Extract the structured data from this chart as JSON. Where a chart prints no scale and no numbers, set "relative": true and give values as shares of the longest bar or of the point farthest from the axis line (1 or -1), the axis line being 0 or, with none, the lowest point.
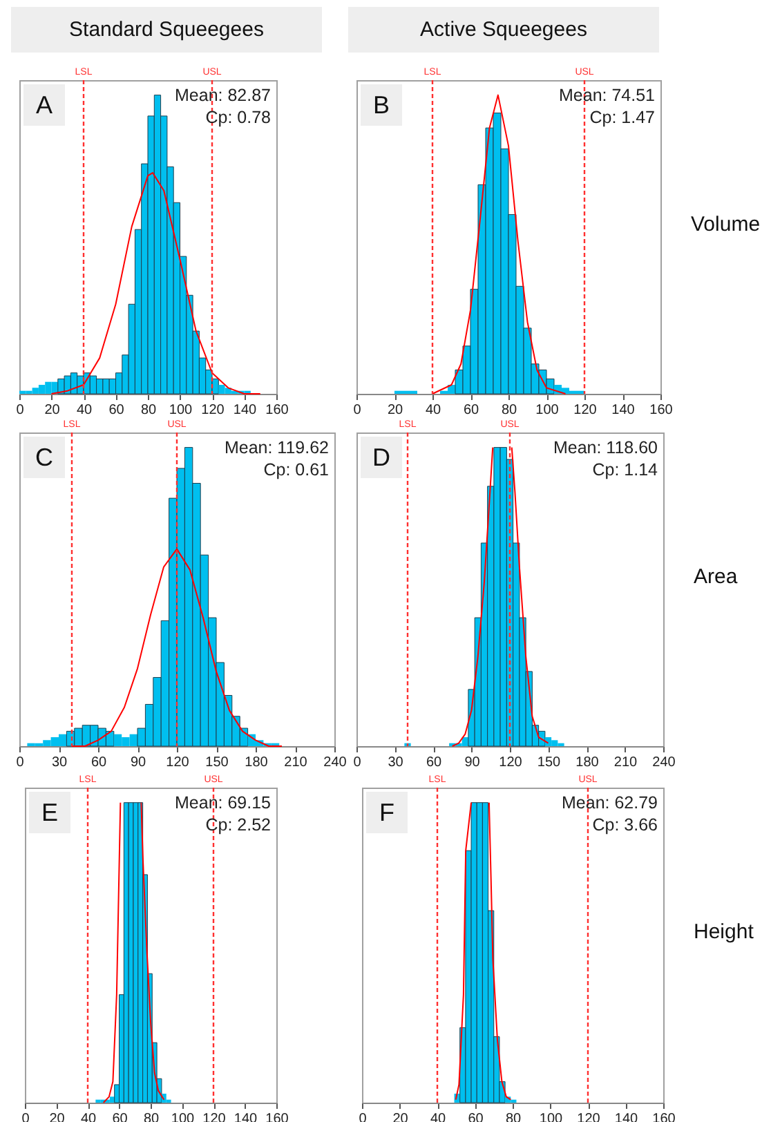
{
  "chart_data": [
    {
      "type": "histogram",
      "title": "Standard Squeegees",
      "relative": true,
      "xlim": [
        0,
        160
      ],
      "xticks": [
        0,
        20,
        40,
        60,
        80,
        100,
        120,
        140,
        160
      ],
      "annotations": [
        "A",
        "Mean: 82.87",
        "Cp: 0.78"
      ],
      "ref_lines": [
        {
          "axis": "x",
          "value": 40,
          "label": "LSL",
          "color": "#ff3030",
          "line_style": "dashed"
        },
        {
          "axis": "x",
          "value": 120,
          "label": "USL",
          "color": "#ff3030",
          "line_style": "dashed"
        }
      ],
      "series": [
        {
          "type": "histogram",
          "color": "#00bfef",
          "bins": [
            0,
            4,
            8,
            12,
            16,
            20,
            24,
            28,
            32,
            36,
            40,
            44,
            48,
            52,
            56,
            60,
            64,
            68,
            72,
            76,
            80,
            84,
            88,
            92,
            96,
            100,
            104,
            108,
            112,
            116,
            120,
            124,
            128,
            132,
            136,
            140,
            144
          ],
          "values": [
            0.01,
            0.01,
            0.02,
            0.03,
            0.04,
            0.04,
            0.05,
            0.06,
            0.07,
            0.06,
            0.07,
            0.06,
            0.05,
            0.05,
            0.05,
            0.07,
            0.13,
            0.3,
            0.55,
            0.77,
            0.93,
            1.0,
            0.93,
            0.76,
            0.64,
            0.46,
            0.33,
            0.21,
            0.12,
            0.08,
            0.05,
            0.03,
            0.02,
            0.01,
            0.01,
            0.01
          ]
        },
        {
          "type": "line",
          "color": "#ff0000",
          "x": [
            20,
            30,
            40,
            50,
            60,
            70,
            80,
            83,
            90,
            100,
            110,
            120,
            130,
            140,
            150
          ],
          "values": [
            0,
            0.01,
            0.03,
            0.12,
            0.3,
            0.56,
            0.73,
            0.74,
            0.68,
            0.45,
            0.21,
            0.07,
            0.02,
            0,
            0
          ]
        }
      ]
    },
    {
      "type": "histogram",
      "title": "Active Squeegees",
      "relative": true,
      "xlim": [
        0,
        160
      ],
      "xticks": [
        0,
        20,
        40,
        60,
        80,
        100,
        120,
        140,
        160
      ],
      "annotations": [
        "B",
        "Mean: 74.51",
        "Cp: 1.47",
        "Volume"
      ],
      "ref_lines": [
        {
          "axis": "x",
          "value": 40,
          "label": "LSL",
          "color": "#ff3030",
          "line_style": "dashed"
        },
        {
          "axis": "x",
          "value": 120,
          "label": "USL",
          "color": "#ff3030",
          "line_style": "dashed"
        }
      ],
      "series": [
        {
          "type": "histogram",
          "color": "#00bfef",
          "bins": [
            20,
            24,
            28,
            32,
            36,
            40,
            44,
            48,
            52,
            56,
            60,
            64,
            68,
            72,
            76,
            80,
            84,
            88,
            92,
            96,
            100,
            104,
            108,
            112,
            116,
            120
          ],
          "values": [
            0.01,
            0.01,
            0.01,
            0,
            0,
            0,
            0.01,
            0.03,
            0.08,
            0.16,
            0.35,
            0.7,
            0.89,
            0.94,
            0.82,
            0.6,
            0.36,
            0.22,
            0.1,
            0.08,
            0.05,
            0.03,
            0.02,
            0.01,
            0.01
          ]
        },
        {
          "type": "line",
          "color": "#ff0000",
          "x": [
            40,
            50,
            55,
            60,
            65,
            70,
            74.5,
            80,
            85,
            90,
            95,
            100,
            110
          ],
          "values": [
            0,
            0.03,
            0.1,
            0.28,
            0.58,
            0.89,
            1.0,
            0.83,
            0.51,
            0.24,
            0.08,
            0.02,
            0
          ]
        }
      ]
    },
    {
      "type": "histogram",
      "relative": true,
      "xlim": [
        0,
        240
      ],
      "xticks": [
        0,
        30,
        60,
        90,
        120,
        150,
        180,
        210,
        240
      ],
      "annotations": [
        "C",
        "Mean: 119.62",
        "Cp: 0.61"
      ],
      "ref_lines": [
        {
          "axis": "x",
          "value": 40,
          "label": "LSL",
          "color": "#ff3030",
          "line_style": "dashed"
        },
        {
          "axis": "x",
          "value": 120,
          "label": "USL",
          "color": "#ff3030",
          "line_style": "dashed"
        }
      ],
      "series": [
        {
          "type": "histogram",
          "color": "#00bfef",
          "bins": [
            6,
            12,
            18,
            24,
            30,
            36,
            42,
            48,
            54,
            60,
            66,
            72,
            78,
            84,
            90,
            96,
            102,
            108,
            114,
            120,
            126,
            132,
            138,
            144,
            150,
            156,
            162,
            168,
            174,
            180,
            186,
            192,
            198
          ],
          "values": [
            0.01,
            0.01,
            0.02,
            0.03,
            0.04,
            0.05,
            0.06,
            0.07,
            0.07,
            0.06,
            0.05,
            0.04,
            0.03,
            0.04,
            0.06,
            0.14,
            0.23,
            0.42,
            0.83,
            0.93,
            1.0,
            0.88,
            0.64,
            0.43,
            0.28,
            0.17,
            0.1,
            0.06,
            0.04,
            0.02,
            0.01,
            0.01
          ]
        },
        {
          "type": "line",
          "color": "#ff0000",
          "x": [
            40,
            50,
            60,
            70,
            80,
            90,
            100,
            110,
            120,
            130,
            140,
            150,
            160,
            170,
            180,
            190,
            200
          ],
          "values": [
            0,
            0,
            0.02,
            0.05,
            0.13,
            0.26,
            0.44,
            0.6,
            0.66,
            0.59,
            0.43,
            0.25,
            0.12,
            0.05,
            0.02,
            0,
            0
          ]
        }
      ]
    },
    {
      "type": "histogram",
      "relative": true,
      "xlim": [
        0,
        240
      ],
      "xticks": [
        0,
        30,
        60,
        90,
        120,
        150,
        180,
        210,
        240
      ],
      "annotations": [
        "D",
        "Mean: 118.60",
        "Cp: 1.14",
        "Area"
      ],
      "ref_lines": [
        {
          "axis": "x",
          "value": 40,
          "label": "LSL",
          "color": "#ff3030",
          "line_style": "dashed"
        },
        {
          "axis": "x",
          "value": 120,
          "label": "USL",
          "color": "#ff3030",
          "line_style": "dashed"
        }
      ],
      "series": [
        {
          "type": "histogram",
          "color": "#00bfef",
          "bins": [
            37.5,
            42.5,
            47.5,
            52.5,
            57.5,
            62.5,
            67.5,
            72.5,
            77.5,
            82.5,
            87.5,
            92.5,
            97.5,
            102.5,
            107.5,
            112.5,
            117.5,
            122.5,
            127.5,
            132.5,
            137.5,
            142.5,
            147.5,
            152.5,
            157.5,
            162.5
          ],
          "values": [
            0.01,
            0,
            0,
            0,
            0,
            0,
            0,
            0.01,
            0.01,
            0.03,
            0.19,
            0.43,
            0.68,
            0.87,
            1,
            1,
            0.96,
            0.68,
            0.43,
            0.25,
            0.07,
            0.05,
            0.03,
            0.02,
            0.01
          ]
        },
        {
          "type": "line",
          "color": "#ff0000",
          "x": [
            75,
            80,
            85,
            90,
            95,
            100,
            104,
            106.6,
            114,
            121.5,
            124,
            127.5,
            132.5,
            137.5,
            142.5,
            150
          ],
          "values": [
            0,
            0.01,
            0.04,
            0.12,
            0.3,
            0.55,
            0.82,
            1.0,
            null,
            1.0,
            0.85,
            0.6,
            0.3,
            0.1,
            0.03,
            0.01
          ]
        }
      ]
    },
    {
      "type": "histogram",
      "relative": true,
      "xlim": [
        0,
        160
      ],
      "xticks": [
        0,
        20,
        40,
        60,
        80,
        100,
        120,
        140,
        160
      ],
      "annotations": [
        "E",
        "Mean: 69.15",
        "Cp: 2.52"
      ],
      "ref_lines": [
        {
          "axis": "x",
          "value": 40,
          "label": "LSL",
          "color": "#ff3030",
          "line_style": "dashed"
        },
        {
          "axis": "x",
          "value": 120,
          "label": "USL",
          "color": "#ff3030",
          "line_style": "dashed"
        }
      ],
      "series": [
        {
          "type": "histogram",
          "color": "#00bfef",
          "bins": [
            45,
            48,
            51,
            54,
            57,
            60,
            63,
            66,
            69,
            72,
            75,
            78,
            81,
            84,
            87,
            90,
            93
          ],
          "values": [
            0.01,
            0.01,
            0.01,
            0.02,
            0.06,
            0.36,
            1,
            1,
            1,
            1,
            0.76,
            0.43,
            0.2,
            0.08,
            0.03,
            0.01
          ]
        },
        {
          "type": "line",
          "color": "#ff0000",
          "x": [
            50,
            53.6,
            56,
            58.4,
            60.8,
            67,
            74,
            75.2,
            77.6,
            80,
            82.5,
            84.9,
            88.5
          ],
          "values": [
            0,
            0.02,
            0.07,
            0.36,
            1.0,
            null,
            1.0,
            0.8,
            0.51,
            0.27,
            0.1,
            0.04,
            0.01
          ]
        }
      ]
    },
    {
      "type": "histogram",
      "relative": true,
      "xlim": [
        0,
        160
      ],
      "xticks": [
        0,
        20,
        40,
        60,
        80,
        100,
        120,
        140,
        160
      ],
      "annotations": [
        "F",
        "Mean: 62.79",
        "Cp: 3.66",
        "Height"
      ],
      "ref_lines": [
        {
          "axis": "x",
          "value": 40,
          "label": "LSL",
          "color": "#ff3030",
          "line_style": "dashed"
        },
        {
          "axis": "x",
          "value": 120,
          "label": "USL",
          "color": "#ff3030",
          "line_style": "dashed"
        }
      ],
      "series": [
        {
          "type": "histogram",
          "color": "#00bfef",
          "bins": [
            49,
            52,
            55,
            58,
            61,
            64,
            67,
            70,
            73,
            76,
            79,
            82
          ],
          "values": [
            0.03,
            0.25,
            0.84,
            1,
            1,
            1,
            0.64,
            0.22,
            0.07,
            0.02,
            0.01
          ]
        },
        {
          "type": "line",
          "color": "#ff0000",
          "x": [
            49.8,
            51.5,
            53.9,
            55.1,
            58,
            62.8,
            67.5,
            68.5,
            69.5,
            71.9,
            74.3,
            76.6,
            79
          ],
          "values": [
            0.01,
            0.06,
            0.36,
            0.84,
            1.0,
            null,
            1.0,
            0.75,
            0.48,
            0.21,
            0.07,
            0.02,
            0.01
          ]
        }
      ]
    }
  ]
}
